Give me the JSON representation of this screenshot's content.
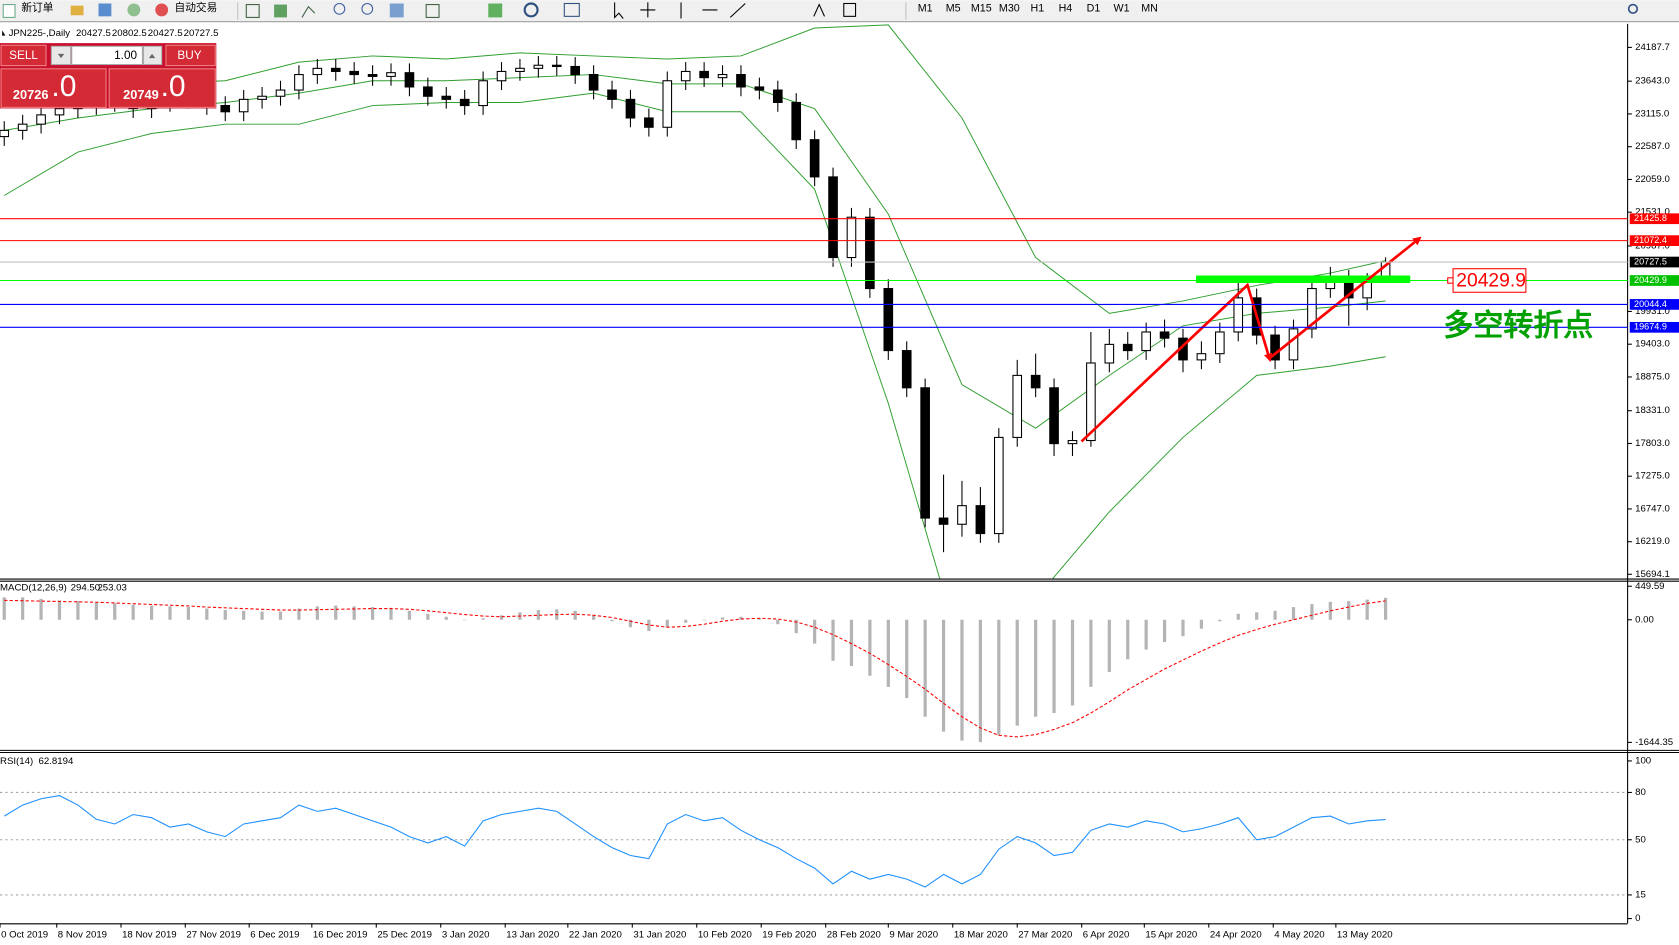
{
  "toolbar": {
    "new_order": "新订单",
    "auto_trading": "自动交易",
    "timeframes": [
      "M1",
      "M5",
      "M15",
      "M30",
      "H1",
      "H4",
      "D1",
      "W1",
      "MN"
    ]
  },
  "trade_panel": {
    "sell": "SELL",
    "buy": "BUY",
    "lots": "1.00",
    "sell_price": "20726",
    "sell_pips": ".0",
    "buy_price": "20749",
    "buy_pips": ".0"
  },
  "chart_data": [
    {
      "type": "candlestick",
      "title": "JPN225-,Daily",
      "open": [
        22750,
        22850,
        22950,
        23100,
        23200,
        23250,
        23300,
        23350,
        23200,
        23300,
        23350,
        23400,
        23250,
        23150,
        23350,
        23400,
        23500,
        23750,
        23850,
        23800,
        23750,
        23720,
        23780,
        23550,
        23400,
        23350,
        23250,
        23650,
        23800,
        23850,
        23900,
        23880,
        23750,
        23500,
        23350,
        23050,
        22900,
        23650,
        23800,
        23700,
        23750,
        23550,
        23500,
        23300,
        22700,
        22100,
        20800,
        21450,
        20300,
        19300,
        18700,
        16600,
        16500,
        16800,
        16350,
        17900,
        18900,
        18700,
        17800,
        17850,
        19100,
        19400,
        19300,
        19600,
        19500,
        19150,
        19250,
        19600,
        20150,
        19550,
        19150,
        19650,
        20300,
        20450,
        20150,
        20427.5
      ],
      "high": [
        23000,
        23100,
        23250,
        23350,
        23400,
        23450,
        23500,
        23500,
        23450,
        23500,
        23550,
        23550,
        23400,
        23500,
        23550,
        23650,
        23900,
        24000,
        24000,
        23950,
        23900,
        23930,
        23930,
        23700,
        23550,
        23500,
        23800,
        23950,
        24000,
        24050,
        24050,
        24030,
        23900,
        23650,
        23500,
        23200,
        23800,
        23950,
        23950,
        23900,
        23900,
        23700,
        23650,
        23450,
        22850,
        22250,
        21600,
        21600,
        20450,
        19450,
        18850,
        17300,
        17200,
        17100,
        18050,
        19150,
        19250,
        18850,
        18000,
        19600,
        19650,
        19600,
        19750,
        19800,
        19650,
        19450,
        19750,
        20500,
        20300,
        19700,
        19800,
        20450,
        20650,
        20600,
        20550,
        20802.5
      ],
      "low": [
        22600,
        22700,
        22800,
        22950,
        23050,
        23100,
        23150,
        23050,
        23050,
        23150,
        23200,
        23100,
        23000,
        23000,
        23200,
        23250,
        23350,
        23600,
        23650,
        23600,
        23570,
        23570,
        23400,
        23250,
        23200,
        23100,
        23100,
        23500,
        23650,
        23700,
        23730,
        23600,
        23350,
        23200,
        22900,
        22750,
        22750,
        23500,
        23550,
        23550,
        23400,
        23350,
        23150,
        22550,
        21950,
        20650,
        20650,
        20150,
        19150,
        18550,
        16450,
        16050,
        16300,
        16200,
        16200,
        17750,
        18550,
        17600,
        17600,
        17750,
        18950,
        19150,
        19150,
        19350,
        18950,
        19000,
        19100,
        19450,
        19400,
        19000,
        19000,
        19500,
        20150,
        19700,
        19950,
        20427.5
      ],
      "close": [
        22850,
        22950,
        23100,
        23200,
        23250,
        23300,
        23350,
        23200,
        23300,
        23350,
        23400,
        23250,
        23150,
        23350,
        23400,
        23500,
        23750,
        23850,
        23800,
        23750,
        23720,
        23780,
        23550,
        23400,
        23350,
        23250,
        23650,
        23800,
        23850,
        23900,
        23880,
        23750,
        23500,
        23350,
        23050,
        22900,
        23650,
        23800,
        23700,
        23750,
        23550,
        23500,
        23300,
        22700,
        22100,
        20800,
        21450,
        20300,
        19300,
        18700,
        16600,
        16500,
        16800,
        16350,
        17900,
        18900,
        18700,
        17800,
        17850,
        19100,
        19400,
        19300,
        19600,
        19500,
        19150,
        19250,
        19600,
        20150,
        19550,
        19150,
        19650,
        20300,
        20450,
        20150,
        20400,
        20727.5
      ],
      "up_color": "#ffffff",
      "down_color": "#000000",
      "bands": {
        "color": "#2e9e2e",
        "x": [
          0,
          4,
          8,
          12,
          16,
          20,
          24,
          28,
          32,
          36,
          40,
          44,
          48,
          52,
          56,
          60,
          64,
          68,
          72,
          75
        ],
        "upper": [
          23300,
          23550,
          23600,
          23650,
          23950,
          24050,
          24000,
          24100,
          24050,
          24000,
          24050,
          24500,
          24550,
          23050,
          20800,
          19900,
          20100,
          20350,
          20550,
          20750
        ],
        "middle": [
          22850,
          23050,
          23200,
          23300,
          23450,
          23650,
          23650,
          23700,
          23750,
          23600,
          23600,
          23200,
          21500,
          18750,
          18050,
          18900,
          19700,
          19900,
          20000,
          20100
        ],
        "lower": [
          21800,
          22500,
          22800,
          22950,
          22950,
          23250,
          23300,
          23300,
          23450,
          23150,
          23150,
          21900,
          18450,
          14400,
          15300,
          16700,
          17900,
          18900,
          19050,
          19200
        ]
      },
      "levels": [
        {
          "value": 21425.8,
          "color": "#ff0000",
          "label_color": "#ff0000"
        },
        {
          "value": 21072.4,
          "color": "#ff0000",
          "label_color": "#ff0000"
        },
        {
          "value": 20727.5,
          "color": "#c0c0c0",
          "label_color": "#000000"
        },
        {
          "value": 20429.9,
          "color": "#00ff00",
          "label_color": "#00c000",
          "callout": true
        },
        {
          "value": 20044.4,
          "color": "#0000ff",
          "label_color": "#0000ff"
        },
        {
          "value": 19674.9,
          "color": "#0000ff",
          "label_color": "#0000ff"
        }
      ],
      "annotation": {
        "text": "多空转折点",
        "color": "#00a000"
      },
      "ylim": [
        15625.6,
        24567.5
      ],
      "yticks": [
        {
          "value": 24187.7,
          "label": "24187.7"
        },
        {
          "value": 23643,
          "label": "23643.0"
        },
        {
          "value": 23115,
          "label": "23115.0"
        },
        {
          "value": 22587,
          "label": "22587.0"
        },
        {
          "value": 22059,
          "label": "22059.0"
        },
        {
          "value": 21531,
          "label": "21531.0"
        },
        {
          "value": 20987,
          "label": "20987.0"
        },
        {
          "value": 19931,
          "label": "19931.0"
        },
        {
          "value": 19403,
          "label": "19403.0"
        },
        {
          "value": 18875,
          "label": "18875.0"
        },
        {
          "value": 18331,
          "label": "18331.0"
        },
        {
          "value": 17803,
          "label": "17803.0"
        },
        {
          "value": 17275,
          "label": "17275.0"
        },
        {
          "value": 16747,
          "label": "16747.0"
        },
        {
          "value": 16219,
          "label": "16219.0"
        },
        {
          "value": 15694.1,
          "label": "15694.1"
        }
      ],
      "xlim": [
        -0.23,
        88.14
      ],
      "xticks": [
        {
          "value": -0.23,
          "label": "0 Oct 2019"
        },
        {
          "value": 2.85,
          "label": "8 Nov 2019"
        },
        {
          "value": 6.34,
          "label": "18 Nov 2019"
        },
        {
          "value": 9.83,
          "label": "27 Nov 2019"
        },
        {
          "value": 13.3,
          "label": "6 Dec 2019"
        },
        {
          "value": 16.7,
          "label": "16 Dec 2019"
        },
        {
          "value": 20.2,
          "label": "25 Dec 2019"
        },
        {
          "value": 23.7,
          "label": "3 Jan 2020"
        },
        {
          "value": 27.2,
          "label": "13 Jan 2020"
        },
        {
          "value": 30.6,
          "label": "22 Jan 2020"
        },
        {
          "value": 34.1,
          "label": "31 Jan 2020"
        },
        {
          "value": 37.6,
          "label": "10 Feb 2020"
        },
        {
          "value": 41.1,
          "label": "19 Feb 2020"
        },
        {
          "value": 44.6,
          "label": "28 Feb 2020"
        },
        {
          "value": 48.0,
          "label": "9 Mar 2020"
        },
        {
          "value": 51.5,
          "label": "18 Mar 2020"
        },
        {
          "value": 55.0,
          "label": "27 Mar 2020"
        },
        {
          "value": 58.5,
          "label": "6 Apr 2020"
        },
        {
          "value": 61.9,
          "label": "15 Apr 2020"
        },
        {
          "value": 65.4,
          "label": "24 Apr 2020"
        },
        {
          "value": 68.9,
          "label": "4 May 2020"
        },
        {
          "value": 72.3,
          "label": "13 May 2020"
        }
      ]
    },
    {
      "type": "macd",
      "title": "MACD(12,26,9)",
      "last_labels": [
        "294.50",
        "253.03"
      ],
      "histogram": [
        300,
        300,
        280,
        260,
        250,
        230,
        220,
        200,
        190,
        180,
        170,
        150,
        130,
        120,
        110,
        110,
        150,
        180,
        190,
        180,
        170,
        160,
        120,
        80,
        40,
        0,
        20,
        60,
        100,
        130,
        140,
        120,
        60,
        -20,
        -100,
        -150,
        -100,
        -40,
        0,
        30,
        40,
        20,
        -60,
        -180,
        -320,
        -550,
        -620,
        -750,
        -900,
        -1050,
        -1300,
        -1500,
        -1620,
        -1640,
        -1550,
        -1420,
        -1300,
        -1250,
        -1150,
        -900,
        -700,
        -530,
        -400,
        -300,
        -220,
        -120,
        -20,
        80,
        100,
        120,
        170,
        210,
        240,
        250,
        270,
        294.5
      ],
      "signal": [
        260,
        255,
        250,
        245,
        240,
        235,
        225,
        215,
        205,
        195,
        185,
        170,
        160,
        150,
        140,
        130,
        130,
        135,
        140,
        145,
        150,
        150,
        140,
        120,
        95,
        70,
        50,
        40,
        50,
        60,
        70,
        75,
        60,
        30,
        -20,
        -70,
        -100,
        -90,
        -60,
        -20,
        10,
        20,
        10,
        -30,
        -100,
        -200,
        -320,
        -450,
        -600,
        -760,
        -930,
        -1120,
        -1300,
        -1450,
        -1550,
        -1570,
        -1540,
        -1470,
        -1380,
        -1250,
        -1100,
        -940,
        -800,
        -660,
        -540,
        -420,
        -310,
        -210,
        -130,
        -60,
        0,
        60,
        120,
        170,
        220,
        253.03
      ],
      "histogram_color": "#b4b4b4",
      "signal_color": "#ff0000",
      "ylim": [
        -1744,
        510
      ],
      "yticks": [
        449.59,
        {
          "value": 0,
          "label": "0.00"
        },
        -1644.35
      ]
    },
    {
      "type": "line",
      "title": "RSI(14)",
      "values": [
        65,
        72,
        76,
        78,
        72,
        63,
        60,
        66,
        64,
        58,
        60,
        55,
        52,
        60,
        62,
        64,
        72,
        68,
        70,
        66,
        62,
        58,
        52,
        48,
        52,
        46,
        62,
        66,
        68,
        70,
        68,
        60,
        52,
        45,
        40,
        38,
        60,
        66,
        62,
        64,
        56,
        50,
        45,
        38,
        32,
        22,
        30,
        25,
        28,
        25,
        20,
        28,
        22,
        28,
        44,
        52,
        48,
        40,
        42,
        56,
        60,
        58,
        62,
        60,
        55,
        57,
        60,
        64,
        50,
        52,
        58,
        64,
        65,
        60,
        62,
        62.8194
      ],
      "color": "#1e90ff",
      "ylim": [
        -3,
        105
      ],
      "yticks": [
        100,
        80,
        50,
        15,
        0
      ],
      "levels": [
        80,
        50,
        15
      ]
    }
  ]
}
